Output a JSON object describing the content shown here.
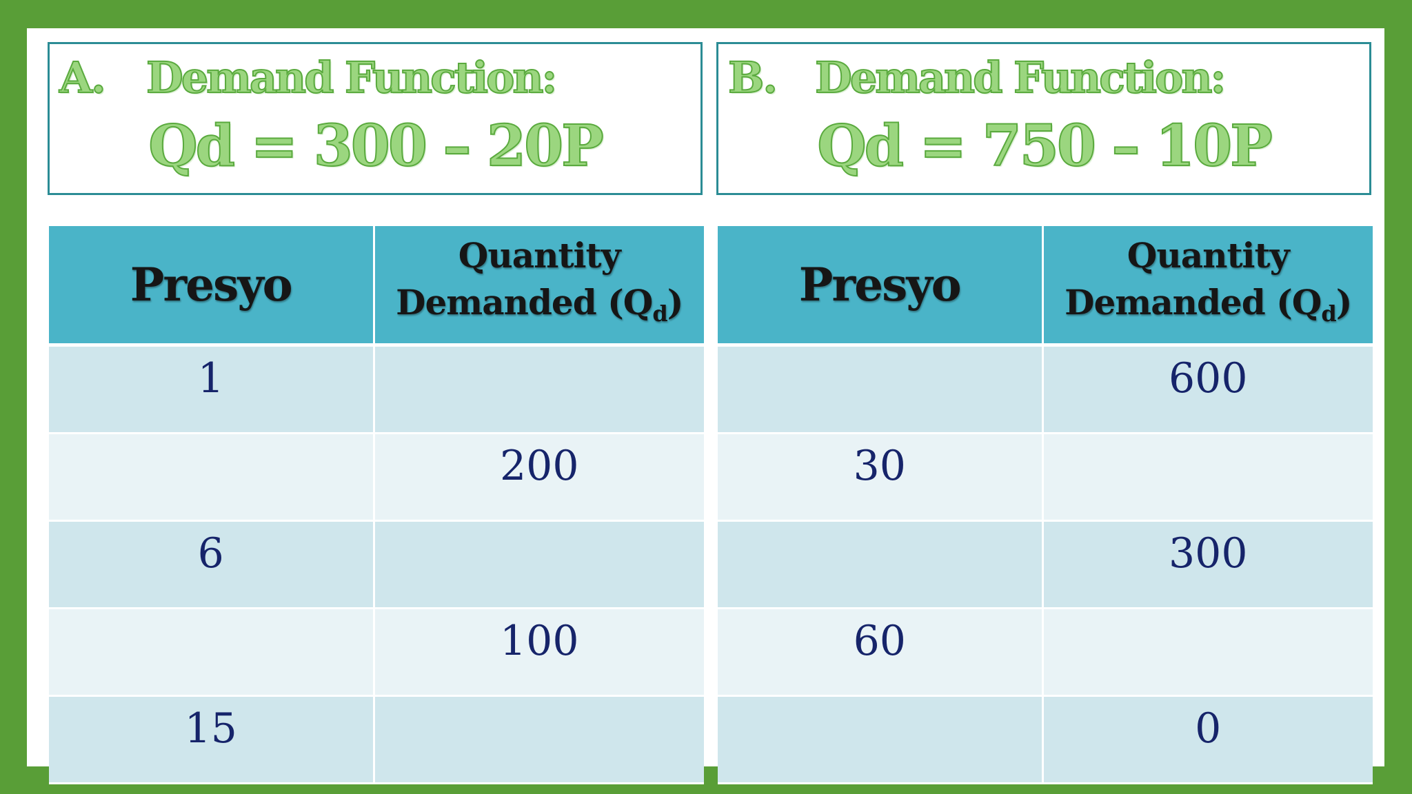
{
  "panels": [
    {
      "letter": "A.",
      "heading": "Demand Function:",
      "equation": "Qd = 300 – 20P",
      "col_price": "Presyo",
      "col_qd_line1": "Quantity",
      "col_qd_line2": "Demanded (Q",
      "col_qd_sub": "d",
      "col_qd_close": ")",
      "rows": [
        {
          "price": "1",
          "qd": ""
        },
        {
          "price": "",
          "qd": "200"
        },
        {
          "price": "6",
          "qd": ""
        },
        {
          "price": "",
          "qd": "100"
        },
        {
          "price": "15",
          "qd": ""
        }
      ]
    },
    {
      "letter": "B.",
      "heading": "Demand Function:",
      "equation": "Qd = 750 – 10P",
      "col_price": "Presyo",
      "col_qd_line1": "Quantity",
      "col_qd_line2": "Demanded (Q",
      "col_qd_sub": "d",
      "col_qd_close": ")",
      "rows": [
        {
          "price": "",
          "qd": "600"
        },
        {
          "price": "30",
          "qd": ""
        },
        {
          "price": "",
          "qd": "300"
        },
        {
          "price": "60",
          "qd": ""
        },
        {
          "price": "",
          "qd": "0"
        }
      ]
    }
  ],
  "colors": {
    "frame": "#599e37",
    "header_fill": "#4ab4c8",
    "row_dark": "#cfe6ec",
    "row_light": "#e9f3f6",
    "title_green": "#9bd67f",
    "box_border": "#2b8c95",
    "number_text": "#16246a"
  }
}
